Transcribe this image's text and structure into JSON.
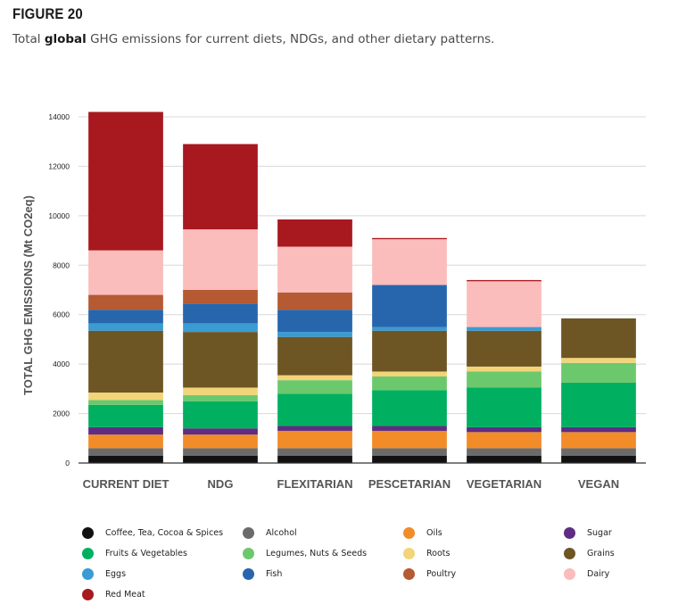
{
  "figure_label": "FIGURE 20",
  "title": {
    "pre": "Total ",
    "bold": "global",
    "post": " GHG emissions for current diets, NDGs, and other dietary patterns."
  },
  "chart_data": {
    "type": "bar",
    "stacked": true,
    "ylabel": "TOTAL GHG EMISSIONS (Mt CO2eq)",
    "ylim": [
      0,
      14000
    ],
    "yticks": [
      0,
      2000,
      4000,
      6000,
      8000,
      10000,
      12000,
      14000
    ],
    "grid": true,
    "legend_position": "bottom",
    "categories": [
      "CURRENT DIET",
      "NDG",
      "FLEXITARIAN",
      "PESCETARIAN",
      "VEGETARIAN",
      "VEGAN"
    ],
    "series": [
      {
        "name": "Coffee, Tea, Cocoa & Spices",
        "color": "#111111",
        "values": [
          300,
          300,
          300,
          300,
          300,
          300
        ]
      },
      {
        "name": "Alcohol",
        "color": "#6b6b6b",
        "values": [
          300,
          300,
          300,
          300,
          300,
          300
        ]
      },
      {
        "name": "Oils",
        "color": "#f28c28",
        "values": [
          550,
          550,
          700,
          700,
          650,
          650
        ]
      },
      {
        "name": "Sugar",
        "color": "#5e2d82",
        "values": [
          300,
          250,
          200,
          200,
          200,
          200
        ]
      },
      {
        "name": "Fruits & Vegetables",
        "color": "#00b060",
        "values": [
          900,
          1100,
          1300,
          1450,
          1600,
          1800
        ]
      },
      {
        "name": "Legumes, Nuts & Seeds",
        "color": "#6cc86c",
        "values": [
          200,
          250,
          550,
          550,
          650,
          800
        ]
      },
      {
        "name": "Roots",
        "color": "#f2d479",
        "values": [
          300,
          300,
          200,
          200,
          200,
          200
        ]
      },
      {
        "name": "Grains",
        "color": "#6e5524",
        "values": [
          2500,
          2250,
          1550,
          1650,
          1450,
          1600
        ]
      },
      {
        "name": "Eggs",
        "color": "#3b9bd3",
        "values": [
          300,
          350,
          200,
          150,
          150,
          0
        ]
      },
      {
        "name": "Fish",
        "color": "#2766ad",
        "values": [
          550,
          800,
          900,
          1700,
          0,
          0
        ]
      },
      {
        "name": "Poultry",
        "color": "#b55a32",
        "values": [
          600,
          550,
          700,
          0,
          0,
          0
        ]
      },
      {
        "name": "Dairy",
        "color": "#fbbcbc",
        "values": [
          1800,
          2450,
          1850,
          1850,
          1850,
          0
        ]
      },
      {
        "name": "Red Meat",
        "color": "#a8181f",
        "values": [
          5600,
          3450,
          1100,
          50,
          50,
          0
        ]
      }
    ]
  }
}
